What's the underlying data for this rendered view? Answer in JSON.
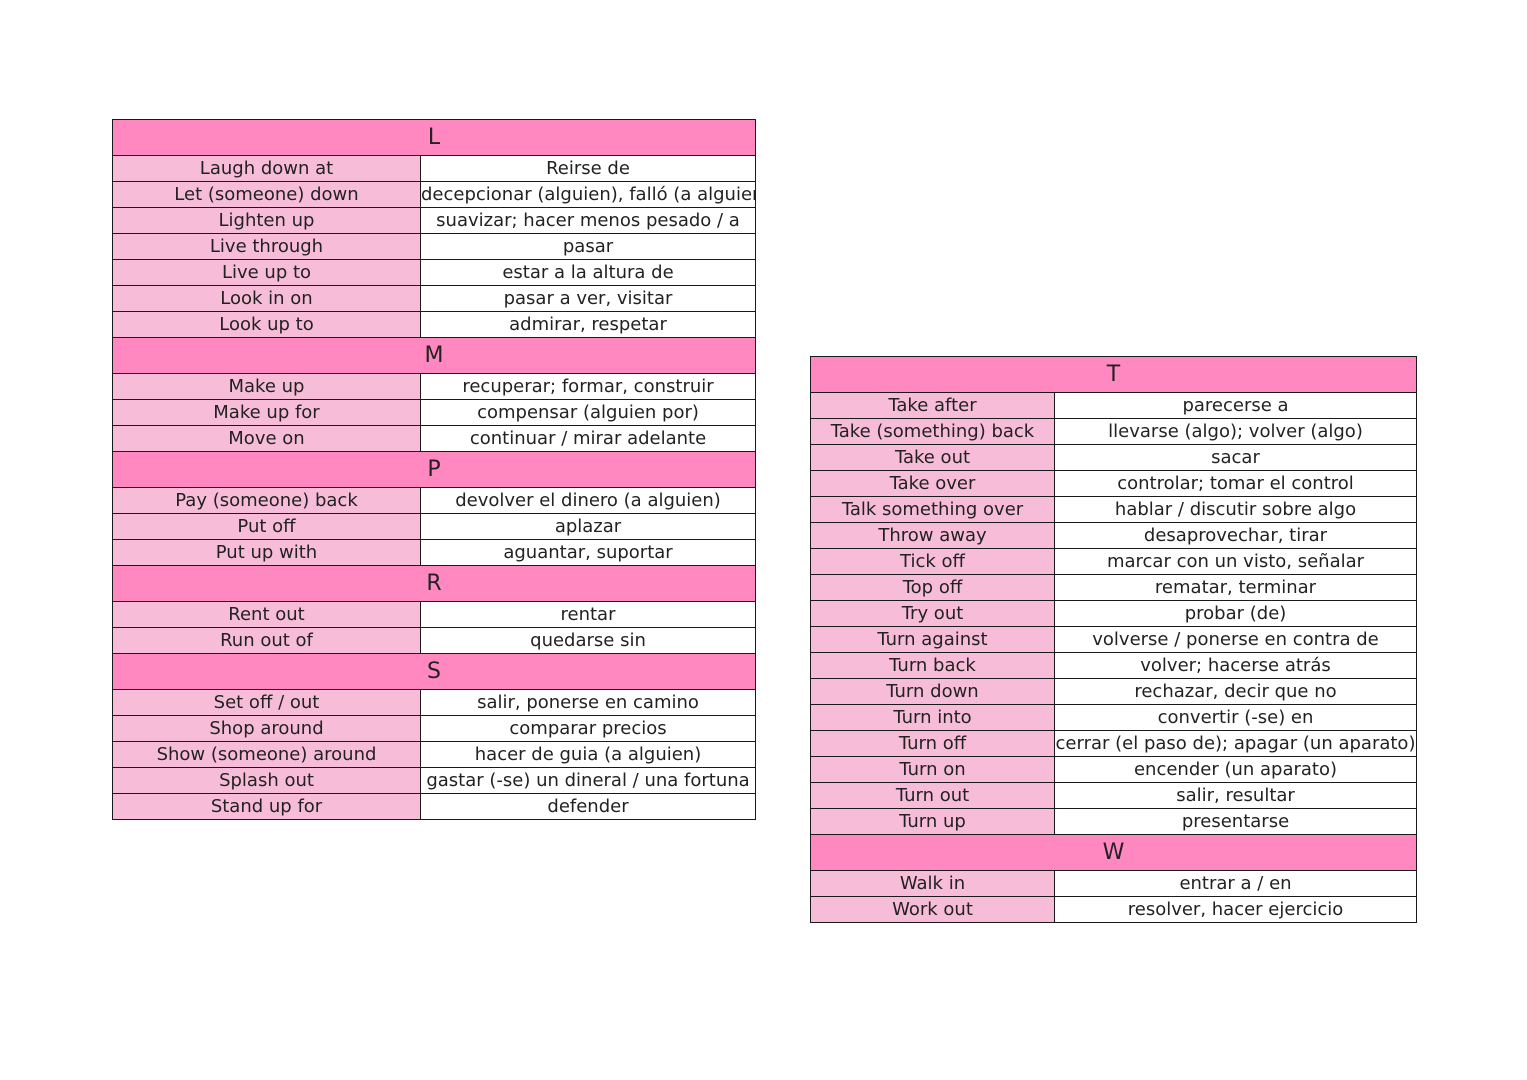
{
  "colors": {
    "letter_header": "#ff88c0",
    "english_cell": "#f7bcd7",
    "spanish_cell": "#ffffff",
    "border": "#1a1a1a"
  },
  "left_table": {
    "sections": [
      {
        "letter": "L",
        "rows": [
          {
            "en": "Laugh down at",
            "es": "Reirse de"
          },
          {
            "en": "Let (someone) down",
            "es": "decepcionar (alguien), falló (a alguien)"
          },
          {
            "en": "Lighten up",
            "es": "suavizar; hacer menos pesado / a"
          },
          {
            "en": "Live through",
            "es": "pasar"
          },
          {
            "en": "Live up to",
            "es": "estar a la altura de"
          },
          {
            "en": "Look in on",
            "es": "pasar a ver, visitar"
          },
          {
            "en": "Look up to",
            "es": "admirar, respetar"
          }
        ]
      },
      {
        "letter": "M",
        "rows": [
          {
            "en": "Make up",
            "es": "recuperar; formar, construir"
          },
          {
            "en": "Make up for",
            "es": "compensar (alguien por)"
          },
          {
            "en": "Move on",
            "es": "continuar / mirar adelante"
          }
        ]
      },
      {
        "letter": "P",
        "rows": [
          {
            "en": "Pay (someone) back",
            "es": "devolver el dinero (a alguien)"
          },
          {
            "en": "Put off",
            "es": "aplazar"
          },
          {
            "en": "Put up with",
            "es": "aguantar, suportar"
          }
        ]
      },
      {
        "letter": "R",
        "rows": [
          {
            "en": "Rent out",
            "es": "rentar"
          },
          {
            "en": "Run out of",
            "es": "quedarse sin"
          }
        ]
      },
      {
        "letter": "S",
        "rows": [
          {
            "en": "Set off / out",
            "es": "salir, ponerse en camino"
          },
          {
            "en": "Shop around",
            "es": "comparar precios"
          },
          {
            "en": "Show (someone) around",
            "es": "hacer de guia (a alguien)"
          },
          {
            "en": "Splash out",
            "es": "gastar (-se) un dineral / una fortuna"
          },
          {
            "en": "Stand  up for",
            "es": "defender"
          }
        ]
      }
    ]
  },
  "right_table": {
    "sections": [
      {
        "letter": "T",
        "rows": [
          {
            "en": "Take after",
            "es": "parecerse a"
          },
          {
            "en": "Take (something) back",
            "es": "llevarse (algo); volver (algo)"
          },
          {
            "en": "Take out",
            "es": "sacar"
          },
          {
            "en": "Take over",
            "es": "controlar; tomar el control"
          },
          {
            "en": "Talk something over",
            "es": "hablar / discutir sobre algo"
          },
          {
            "en": "Throw away",
            "es": "desaprovechar, tirar"
          },
          {
            "en": "Tick off",
            "es": "marcar con un visto, señalar"
          },
          {
            "en": "Top off",
            "es": "rematar, terminar"
          },
          {
            "en": "Try out",
            "es": "probar (de)"
          },
          {
            "en": "Turn against",
            "es": "volverse / ponerse en contra de"
          },
          {
            "en": "Turn back",
            "es": "volver; hacerse atrás"
          },
          {
            "en": "Turn down",
            "es": "rechazar, decir que no"
          },
          {
            "en": "Turn into",
            "es": "convertir (-se) en"
          },
          {
            "en": "Turn off",
            "es": "cerrar (el paso de); apagar (un aparato)"
          },
          {
            "en": "Turn on",
            "es": "encender (un aparato)"
          },
          {
            "en": "Turn out",
            "es": "salir, resultar"
          },
          {
            "en": "Turn up",
            "es": "presentarse"
          }
        ]
      },
      {
        "letter": "W",
        "rows": [
          {
            "en": "Walk in",
            "es": "entrar a / en"
          },
          {
            "en": "Work out",
            "es": "resolver, hacer ejercicio"
          }
        ]
      }
    ]
  }
}
